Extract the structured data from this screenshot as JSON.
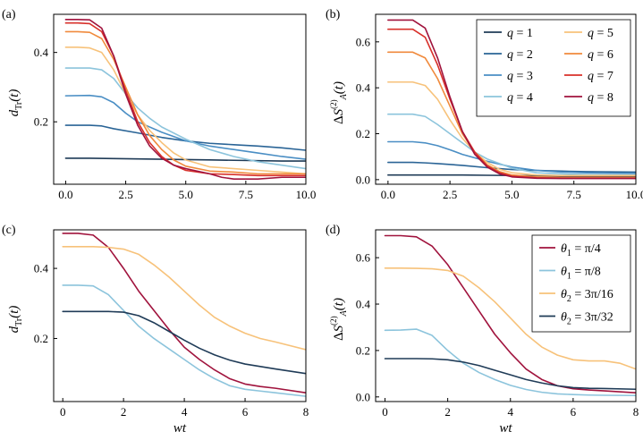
{
  "palette": {
    "q1": "#1f3b57",
    "q2": "#2a6496",
    "q3": "#4a8ec4",
    "q4": "#8cc4dc",
    "q5": "#f7c27a",
    "q6": "#f08a3c",
    "q7": "#d8302a",
    "q8": "#a0133d"
  },
  "chart_data": [
    {
      "id": "a",
      "type": "line",
      "panel_label": "(a)",
      "title": "",
      "xlabel": "",
      "ylabel": "d_Tr(t)",
      "xlim": [
        -0.5,
        10.0
      ],
      "ylim": [
        0.02,
        0.51
      ],
      "xticks": [
        0.0,
        2.5,
        5.0,
        7.5,
        10.0
      ],
      "xtick_labels": [
        "0.0",
        "2.5",
        "5.0",
        "7.5",
        "10.0"
      ],
      "yticks": [
        0.2,
        0.4
      ],
      "ytick_labels": [
        "0.2",
        "0.4"
      ],
      "legend": null,
      "series": [
        {
          "name": "q = 1",
          "color_key": "q1",
          "x": [
            0,
            1,
            2,
            3,
            4,
            5,
            6,
            7,
            8,
            9,
            10
          ],
          "y": [
            0.095,
            0.095,
            0.094,
            0.093,
            0.092,
            0.091,
            0.09,
            0.089,
            0.088,
            0.087,
            0.087
          ]
        },
        {
          "name": "q = 2",
          "color_key": "q2",
          "x": [
            0,
            1,
            1.5,
            2,
            3,
            4,
            5,
            6,
            7,
            8,
            9,
            10
          ],
          "y": [
            0.19,
            0.19,
            0.188,
            0.18,
            0.168,
            0.155,
            0.145,
            0.138,
            0.134,
            0.13,
            0.125,
            0.118
          ]
        },
        {
          "name": "q = 3",
          "color_key": "q3",
          "x": [
            0,
            1,
            1.5,
            2,
            2.5,
            3,
            4,
            5,
            6,
            7,
            8,
            9,
            10
          ],
          "y": [
            0.275,
            0.276,
            0.272,
            0.255,
            0.225,
            0.2,
            0.17,
            0.145,
            0.13,
            0.12,
            0.11,
            0.1,
            0.092
          ]
        },
        {
          "name": "q = 4",
          "color_key": "q4",
          "x": [
            0,
            1,
            1.5,
            2,
            2.5,
            3,
            3.5,
            4,
            5,
            6,
            7,
            8,
            9,
            10
          ],
          "y": [
            0.355,
            0.355,
            0.35,
            0.325,
            0.28,
            0.24,
            0.21,
            0.185,
            0.15,
            0.12,
            0.1,
            0.085,
            0.075,
            0.065
          ]
        },
        {
          "name": "q = 5",
          "color_key": "q5",
          "x": [
            0,
            0.5,
            1,
            1.5,
            2,
            2.5,
            3,
            3.5,
            4,
            4.5,
            5,
            6,
            7,
            8,
            9,
            10
          ],
          "y": [
            0.415,
            0.415,
            0.413,
            0.4,
            0.35,
            0.28,
            0.22,
            0.175,
            0.14,
            0.11,
            0.09,
            0.07,
            0.065,
            0.06,
            0.055,
            0.05
          ]
        },
        {
          "name": "q = 6",
          "color_key": "q6",
          "x": [
            0,
            0.5,
            1,
            1.5,
            2,
            2.5,
            3,
            3.5,
            4,
            4.5,
            5,
            6,
            7,
            8,
            9,
            10
          ],
          "y": [
            0.46,
            0.46,
            0.458,
            0.44,
            0.38,
            0.3,
            0.22,
            0.16,
            0.12,
            0.09,
            0.072,
            0.058,
            0.055,
            0.05,
            0.05,
            0.05
          ]
        },
        {
          "name": "q = 7",
          "color_key": "q7",
          "x": [
            0,
            0.5,
            1,
            1.5,
            2,
            2.5,
            3,
            3.5,
            4,
            4.5,
            5,
            6,
            7,
            8,
            9,
            10
          ],
          "y": [
            0.485,
            0.485,
            0.483,
            0.46,
            0.39,
            0.29,
            0.2,
            0.14,
            0.1,
            0.075,
            0.06,
            0.05,
            0.048,
            0.045,
            0.045,
            0.045
          ]
        },
        {
          "name": "q = 8",
          "color_key": "q8",
          "x": [
            0,
            0.5,
            1,
            1.5,
            2,
            2.5,
            3,
            3.5,
            4,
            4.5,
            5,
            6,
            6.5,
            7,
            8,
            9,
            10
          ],
          "y": [
            0.495,
            0.495,
            0.494,
            0.47,
            0.39,
            0.28,
            0.19,
            0.13,
            0.095,
            0.075,
            0.065,
            0.05,
            0.04,
            0.035,
            0.035,
            0.04,
            0.04
          ]
        }
      ]
    },
    {
      "id": "b",
      "type": "line",
      "panel_label": "(b)",
      "title": "",
      "xlabel": "",
      "ylabel": "ΔS_A^(2)(t)",
      "xlim": [
        -0.5,
        10.0
      ],
      "ylim": [
        -0.02,
        0.72
      ],
      "xticks": [
        0.0,
        2.5,
        5.0,
        7.5,
        10.0
      ],
      "xtick_labels": [
        "0.0",
        "2.5",
        "5.0",
        "7.5",
        "10.0"
      ],
      "yticks": [
        0.0,
        0.2,
        0.4,
        0.6
      ],
      "ytick_labels": [
        "0.0",
        "0.2",
        "0.4",
        "0.6"
      ],
      "legend": {
        "placement": "top-right",
        "columns": 2,
        "entries": [
          {
            "label": "q = 1",
            "color_key": "q1"
          },
          {
            "label": "q = 2",
            "color_key": "q2"
          },
          {
            "label": "q = 3",
            "color_key": "q3"
          },
          {
            "label": "q = 4",
            "color_key": "q4"
          },
          {
            "label": "q = 5",
            "color_key": "q5"
          },
          {
            "label": "q = 6",
            "color_key": "q6"
          },
          {
            "label": "q = 7",
            "color_key": "q7"
          },
          {
            "label": "q = 8",
            "color_key": "q8"
          }
        ]
      },
      "series": [
        {
          "name": "q = 1",
          "color_key": "q1",
          "x": [
            0,
            1,
            2,
            3,
            4,
            5,
            6,
            7,
            8,
            9,
            10
          ],
          "y": [
            0.02,
            0.02,
            0.02,
            0.02,
            0.019,
            0.018,
            0.017,
            0.016,
            0.015,
            0.015,
            0.015
          ]
        },
        {
          "name": "q = 2",
          "color_key": "q2",
          "x": [
            0,
            1,
            1.5,
            2,
            3,
            4,
            5,
            6,
            7,
            8,
            9,
            10
          ],
          "y": [
            0.075,
            0.075,
            0.073,
            0.07,
            0.062,
            0.052,
            0.044,
            0.04,
            0.037,
            0.035,
            0.034,
            0.033
          ]
        },
        {
          "name": "q = 3",
          "color_key": "q3",
          "x": [
            0,
            1,
            1.5,
            2,
            2.5,
            3,
            4,
            5,
            6,
            7,
            8,
            9,
            10
          ],
          "y": [
            0.165,
            0.165,
            0.16,
            0.148,
            0.13,
            0.11,
            0.08,
            0.055,
            0.04,
            0.033,
            0.03,
            0.028,
            0.027
          ]
        },
        {
          "name": "q = 4",
          "color_key": "q4",
          "x": [
            0,
            1,
            1.5,
            2,
            2.5,
            3,
            3.5,
            4,
            5,
            6,
            7,
            8,
            9,
            10
          ],
          "y": [
            0.285,
            0.285,
            0.275,
            0.24,
            0.2,
            0.16,
            0.12,
            0.09,
            0.05,
            0.03,
            0.025,
            0.022,
            0.02,
            0.02
          ]
        },
        {
          "name": "q = 5",
          "color_key": "q5",
          "x": [
            0,
            1,
            1.5,
            2,
            2.5,
            3,
            3.5,
            4,
            4.5,
            5,
            6,
            7,
            8,
            9,
            10
          ],
          "y": [
            0.425,
            0.425,
            0.41,
            0.35,
            0.26,
            0.18,
            0.12,
            0.075,
            0.045,
            0.03,
            0.02,
            0.018,
            0.018,
            0.018,
            0.018
          ]
        },
        {
          "name": "q = 6",
          "color_key": "q6",
          "x": [
            0,
            1,
            1.5,
            2,
            2.5,
            3,
            3.5,
            4,
            4.5,
            5,
            6,
            7,
            8,
            9,
            10
          ],
          "y": [
            0.555,
            0.555,
            0.53,
            0.44,
            0.32,
            0.2,
            0.12,
            0.065,
            0.035,
            0.02,
            0.012,
            0.01,
            0.01,
            0.01,
            0.01
          ]
        },
        {
          "name": "q = 7",
          "color_key": "q7",
          "x": [
            0,
            1,
            1.5,
            2,
            2.5,
            3,
            3.5,
            4,
            4.5,
            5,
            6,
            7,
            8,
            9,
            10
          ],
          "y": [
            0.655,
            0.655,
            0.62,
            0.5,
            0.35,
            0.21,
            0.12,
            0.06,
            0.03,
            0.015,
            0.008,
            0.006,
            0.006,
            0.006,
            0.006
          ]
        },
        {
          "name": "q = 8",
          "color_key": "q8",
          "x": [
            0,
            1,
            1.5,
            2,
            2.5,
            3,
            3.5,
            4,
            4.5,
            5,
            6,
            7,
            8,
            9,
            10
          ],
          "y": [
            0.695,
            0.695,
            0.66,
            0.53,
            0.36,
            0.21,
            0.11,
            0.055,
            0.025,
            0.012,
            0.006,
            0.005,
            0.005,
            0.005,
            0.005
          ]
        }
      ]
    },
    {
      "id": "c",
      "type": "line",
      "panel_label": "(c)",
      "title": "",
      "xlabel": "wt",
      "ylabel": "d_Tr(t)",
      "xlim": [
        -0.3,
        8.0
      ],
      "ylim": [
        0.02,
        0.51
      ],
      "xticks": [
        0,
        2,
        4,
        6,
        8
      ],
      "xtick_labels": [
        "0",
        "2",
        "4",
        "6",
        "8"
      ],
      "yticks": [
        0.2,
        0.4
      ],
      "ytick_labels": [
        "0.2",
        "0.4"
      ],
      "legend": null,
      "series": [
        {
          "name": "θ1 = π/4",
          "color_key": "q8",
          "x": [
            0,
            0.5,
            1,
            1.5,
            2,
            2.5,
            3,
            3.5,
            4,
            4.5,
            5,
            5.5,
            6,
            6.5,
            7,
            8
          ],
          "y": [
            0.5,
            0.5,
            0.495,
            0.46,
            0.4,
            0.335,
            0.28,
            0.225,
            0.175,
            0.14,
            0.11,
            0.085,
            0.07,
            0.063,
            0.058,
            0.045
          ]
        },
        {
          "name": "θ1 = π/8",
          "color_key": "q4",
          "x": [
            0,
            0.5,
            1,
            1.5,
            2,
            2.5,
            3,
            3.5,
            4,
            4.5,
            5,
            5.5,
            6,
            6.5,
            7,
            8
          ],
          "y": [
            0.352,
            0.352,
            0.35,
            0.325,
            0.28,
            0.235,
            0.2,
            0.17,
            0.14,
            0.11,
            0.085,
            0.065,
            0.055,
            0.05,
            0.045,
            0.035
          ]
        },
        {
          "name": "θ2 = 3π/16",
          "color_key": "q5",
          "x": [
            0,
            0.5,
            1,
            1.5,
            2,
            2.5,
            3,
            3.5,
            4,
            4.5,
            5,
            5.5,
            6,
            6.5,
            7,
            8
          ],
          "y": [
            0.462,
            0.462,
            0.462,
            0.46,
            0.455,
            0.44,
            0.41,
            0.375,
            0.335,
            0.295,
            0.26,
            0.235,
            0.215,
            0.2,
            0.19,
            0.168
          ]
        },
        {
          "name": "θ2 = 3π/32",
          "color_key": "q1",
          "x": [
            0,
            0.5,
            1,
            1.5,
            2,
            2.5,
            3,
            3.5,
            4,
            4.5,
            5,
            5.5,
            6,
            6.5,
            7,
            8
          ],
          "y": [
            0.277,
            0.277,
            0.277,
            0.277,
            0.275,
            0.265,
            0.245,
            0.22,
            0.195,
            0.172,
            0.153,
            0.138,
            0.127,
            0.12,
            0.113,
            0.1
          ]
        }
      ]
    },
    {
      "id": "d",
      "type": "line",
      "panel_label": "(d)",
      "title": "",
      "xlabel": "wt",
      "ylabel": "ΔS_A^(2)(t)",
      "xlim": [
        -0.3,
        8.0
      ],
      "ylim": [
        -0.02,
        0.72
      ],
      "xticks": [
        0,
        2,
        4,
        6,
        8
      ],
      "xtick_labels": [
        "0",
        "2",
        "4",
        "6",
        "8"
      ],
      "yticks": [
        0.0,
        0.2,
        0.4,
        0.6
      ],
      "ytick_labels": [
        "0.0",
        "0.2",
        "0.4",
        "0.6"
      ],
      "legend": {
        "placement": "top-right",
        "columns": 1,
        "entries": [
          {
            "label": "θ1 = π/4",
            "color_key": "q8"
          },
          {
            "label": "θ1 = π/8",
            "color_key": "q4"
          },
          {
            "label": "θ2 = 3π/16",
            "color_key": "q5"
          },
          {
            "label": "θ2 = 3π/32",
            "color_key": "q1"
          }
        ]
      },
      "series": [
        {
          "name": "θ1 = π/4",
          "color_key": "q8",
          "x": [
            0,
            0.5,
            1,
            1.5,
            2,
            2.5,
            3,
            3.5,
            4,
            4.5,
            5,
            5.5,
            6,
            6.5,
            7,
            8
          ],
          "y": [
            0.695,
            0.695,
            0.69,
            0.65,
            0.57,
            0.47,
            0.37,
            0.27,
            0.19,
            0.12,
            0.075,
            0.048,
            0.035,
            0.03,
            0.026,
            0.018
          ]
        },
        {
          "name": "θ1 = π/8",
          "color_key": "q4",
          "x": [
            0,
            0.5,
            1,
            1.5,
            2,
            2.5,
            3,
            3.5,
            4,
            4.5,
            5,
            5.5,
            6,
            6.5,
            7,
            8
          ],
          "y": [
            0.287,
            0.288,
            0.292,
            0.265,
            0.2,
            0.145,
            0.105,
            0.075,
            0.05,
            0.032,
            0.02,
            0.013,
            0.01,
            0.008,
            0.007,
            0.006
          ]
        },
        {
          "name": "θ2 = 3π/16",
          "color_key": "q5",
          "x": [
            0,
            0.5,
            1,
            1.5,
            2,
            2.5,
            3,
            3.5,
            4,
            4.5,
            5,
            5.5,
            6,
            6.5,
            7,
            7.5,
            8
          ],
          "y": [
            0.555,
            0.555,
            0.554,
            0.552,
            0.545,
            0.52,
            0.47,
            0.41,
            0.34,
            0.27,
            0.215,
            0.18,
            0.16,
            0.155,
            0.155,
            0.145,
            0.12
          ]
        },
        {
          "name": "θ2 = 3π/32",
          "color_key": "q1",
          "x": [
            0,
            0.5,
            1,
            1.5,
            2,
            2.5,
            3,
            3.5,
            4,
            4.5,
            5,
            5.5,
            6,
            6.5,
            7,
            8
          ],
          "y": [
            0.165,
            0.165,
            0.165,
            0.164,
            0.16,
            0.15,
            0.135,
            0.115,
            0.095,
            0.075,
            0.06,
            0.048,
            0.04,
            0.037,
            0.036,
            0.033
          ]
        }
      ]
    }
  ]
}
